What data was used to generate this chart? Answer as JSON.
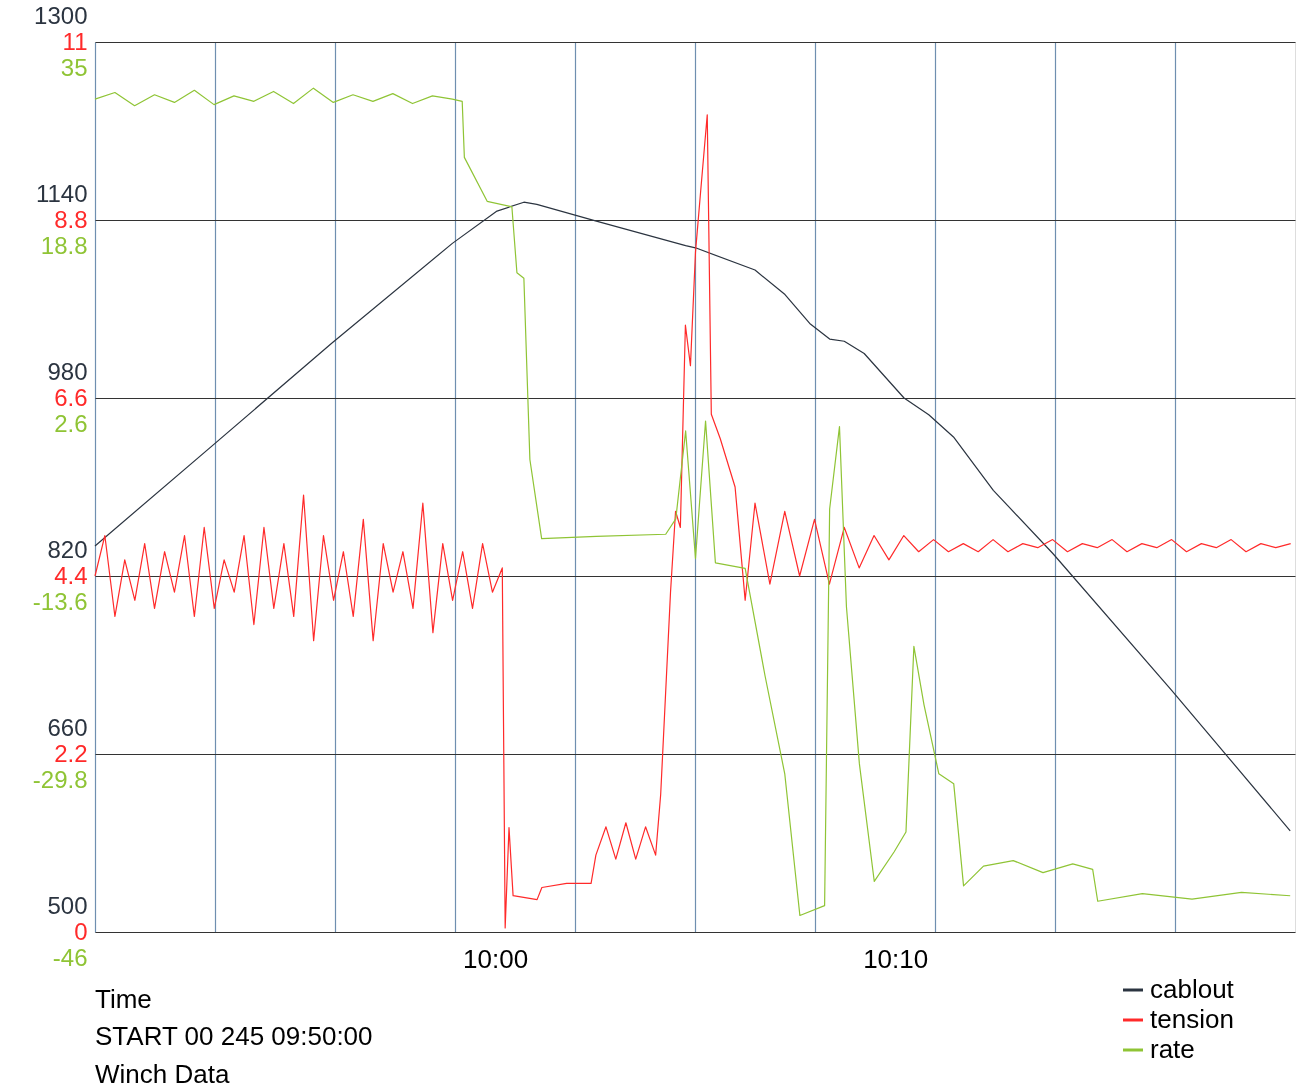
{
  "chart_data": {
    "type": "line",
    "xlabel": "Time",
    "annotations": [
      "START 00 245 09:50:00",
      "Winch Data"
    ],
    "xlim": [
      9.8333,
      10.3333
    ],
    "xticks": [
      {
        "value": 9.8333,
        "label": null
      },
      {
        "value": 9.8833,
        "label": null
      },
      {
        "value": 9.9333,
        "label": null
      },
      {
        "value": 9.9833,
        "label": null
      },
      {
        "value": 10.0,
        "label": "10:00"
      },
      {
        "value": 10.0333,
        "label": null
      },
      {
        "value": 10.0833,
        "label": null
      },
      {
        "value": 10.1333,
        "label": null
      },
      {
        "value": 10.1667,
        "label": "10:10"
      },
      {
        "value": 10.1833,
        "label": null
      },
      {
        "value": 10.2333,
        "label": null
      },
      {
        "value": 10.2833,
        "label": null
      }
    ],
    "ylim": [
      500,
      1300
    ],
    "yticks": [
      500,
      660,
      820,
      980,
      1140,
      1300
    ],
    "y2lim": [
      0,
      11
    ],
    "y2ticks": [
      0,
      2.2,
      4.4,
      6.6,
      8.8,
      11
    ],
    "y3lim": [
      -46,
      35
    ],
    "y3ticks": [
      -46,
      -29.8,
      -13.6,
      2.6,
      18.8,
      35
    ],
    "grid": true,
    "legend": "bottom right",
    "marker": "none",
    "series": [
      {
        "name": "cablout",
        "type": "line",
        "axis": "y",
        "color": "#2b3440",
        "x": [
          9.8333,
          9.8821,
          9.9318,
          9.9822,
          10.0008,
          10.012,
          10.0174,
          10.0422,
          10.0794,
          10.0835,
          10.1083,
          10.1208,
          10.1311,
          10.1394,
          10.1455,
          10.1538,
          10.1704,
          10.1807,
          10.191,
          10.2076,
          10.2325,
          10.282,
          10.3313
        ],
        "values": [
          847,
          937,
          1029,
          1119,
          1148,
          1156,
          1154,
          1139,
          1117,
          1115,
          1095,
          1073,
          1047,
          1033,
          1031,
          1020,
          980,
          965,
          945,
          897,
          840,
          717,
          591
        ]
      },
      {
        "name": "tension",
        "type": "line",
        "axis": "y2",
        "color": "#ff2a2a",
        "x": [
          9.8333,
          9.8374,
          9.8416,
          9.8457,
          9.8499,
          9.854,
          9.8581,
          9.8623,
          9.8664,
          9.8706,
          9.8747,
          9.8788,
          9.883,
          9.8871,
          9.8913,
          9.8954,
          9.8995,
          9.9037,
          9.9078,
          9.912,
          9.9161,
          9.9202,
          9.9244,
          9.9285,
          9.9327,
          9.9368,
          9.9409,
          9.9451,
          9.9492,
          9.9534,
          9.9575,
          9.9616,
          9.9658,
          9.9699,
          9.9741,
          9.9782,
          9.9823,
          9.9865,
          9.9906,
          9.9948,
          9.9989,
          10.003,
          10.0042,
          10.0058,
          10.0075,
          10.0175,
          10.0195,
          10.0298,
          10.04,
          10.042,
          10.0462,
          10.0503,
          10.0545,
          10.0586,
          10.0627,
          10.0669,
          10.069,
          10.0731,
          10.0752,
          10.0772,
          10.0793,
          10.0814,
          10.0835,
          10.0855,
          10.0884,
          10.0901,
          10.0938,
          10.1,
          10.1042,
          10.1083,
          10.1145,
          10.1207,
          10.1269,
          10.1331,
          10.1393,
          10.1455,
          10.1517,
          10.1579,
          10.1641,
          10.1703,
          10.1765,
          10.1827,
          10.1889,
          10.1951,
          10.2013,
          10.2075,
          10.2137,
          10.2199,
          10.2261,
          10.2323,
          10.2385,
          10.2447,
          10.2509,
          10.2571,
          10.2633,
          10.2695,
          10.2757,
          10.2819,
          10.2881,
          10.2943,
          10.3005,
          10.3067,
          10.3129,
          10.3191,
          10.3253,
          10.3315
        ],
        "values": [
          4.4,
          4.9,
          3.9,
          4.6,
          4.1,
          4.8,
          4.0,
          4.7,
          4.2,
          4.9,
          3.9,
          5.0,
          4.0,
          4.6,
          4.2,
          4.9,
          3.8,
          5.0,
          4.0,
          4.8,
          3.9,
          5.4,
          3.6,
          4.9,
          4.1,
          4.7,
          3.9,
          5.1,
          3.6,
          4.8,
          4.2,
          4.7,
          4.0,
          5.3,
          3.7,
          4.8,
          4.1,
          4.7,
          4.0,
          4.8,
          4.2,
          4.5,
          0.05,
          1.29,
          0.45,
          0.4,
          0.55,
          0.6,
          0.6,
          0.95,
          1.3,
          0.9,
          1.35,
          0.9,
          1.3,
          0.95,
          1.7,
          4.2,
          5.2,
          5.0,
          7.5,
          7.0,
          8.4,
          9.1,
          10.1,
          6.4,
          6.1,
          5.5,
          4.1,
          5.3,
          4.3,
          5.2,
          4.4,
          5.1,
          4.3,
          5.0,
          4.5,
          4.9,
          4.6,
          4.9,
          4.7,
          4.85,
          4.7,
          4.8,
          4.7,
          4.85,
          4.7,
          4.8,
          4.75,
          4.85,
          4.7,
          4.8,
          4.75,
          4.85,
          4.7,
          4.8,
          4.75,
          4.85,
          4.7,
          4.8,
          4.75,
          4.85,
          4.7,
          4.8,
          4.75,
          4.8
        ]
      },
      {
        "name": "rate",
        "type": "line",
        "axis": "y3",
        "color": "#8fc435",
        "x": [
          9.8333,
          9.8416,
          9.8498,
          9.8581,
          9.8664,
          9.8747,
          9.8829,
          9.8912,
          9.8995,
          9.9077,
          9.916,
          9.9243,
          9.9326,
          9.9408,
          9.9491,
          9.9574,
          9.9656,
          9.9739,
          9.9822,
          9.9863,
          9.9872,
          9.9967,
          10.007,
          10.0091,
          10.012,
          10.0145,
          10.0194,
          10.0422,
          10.0711,
          10.0753,
          10.0794,
          10.0835,
          10.0877,
          10.0918,
          10.1042,
          10.1125,
          10.1207,
          10.127,
          10.1373,
          10.1394,
          10.1435,
          10.1464,
          10.1518,
          10.158,
          10.1663,
          10.1712,
          10.1745,
          10.1787,
          10.1849,
          10.1911,
          10.1952,
          10.2035,
          10.2159,
          10.2283,
          10.2407,
          10.249,
          10.2511,
          10.2697,
          10.2904,
          10.311,
          10.3313
        ],
        "values": [
          29.8,
          30.4,
          29.2,
          30.2,
          29.5,
          30.6,
          29.3,
          30.1,
          29.6,
          30.5,
          29.4,
          30.8,
          29.5,
          30.2,
          29.6,
          30.3,
          29.4,
          30.1,
          29.8,
          29.6,
          24.5,
          20.5,
          20.0,
          14.0,
          13.5,
          -3.0,
          -10.2,
          -10.0,
          -9.8,
          -8.4,
          -0.4,
          -12.0,
          0.5,
          -12.4,
          -12.9,
          -22.7,
          -31.6,
          -44.5,
          -43.6,
          -7.5,
          0.0,
          -16.4,
          -30.7,
          -41.4,
          -38.7,
          -36.9,
          -20.0,
          -25.3,
          -31.6,
          -32.5,
          -41.8,
          -40.0,
          -39.5,
          -40.6,
          -39.8,
          -40.3,
          -43.2,
          -42.5,
          -43.0,
          -42.4,
          -42.7
        ]
      }
    ]
  }
}
